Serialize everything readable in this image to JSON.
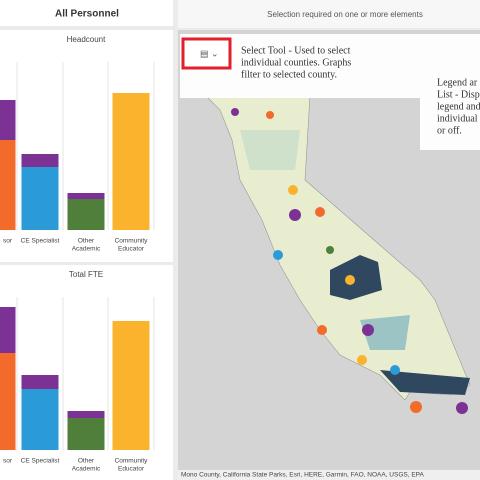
{
  "left": {
    "header": "All Personnel",
    "charts": [
      {
        "title": "Headcount",
        "categories": [
          [
            "sor"
          ],
          [
            "CE Specialist"
          ],
          [
            "Other",
            "Academic"
          ],
          [
            "Community",
            "Educator"
          ]
        ],
        "series": [
          {
            "colors": [
              "#f26b2a",
              "#2b9bd8",
              "#4f7f3a",
              "#fbb22d"
            ],
            "values": [
              90,
              63,
              31,
              137
            ]
          },
          {
            "colors": [
              "#7b3294",
              "#7b3294",
              "#7b3294",
              "#7b3294"
            ],
            "values": [
              40,
              13,
              6,
              null
            ]
          }
        ]
      },
      {
        "title": "Total FTE",
        "categories": [
          [
            "sor"
          ],
          [
            "CE Specialist"
          ],
          [
            "Other",
            "Academic"
          ],
          [
            "Community",
            "Educator"
          ]
        ],
        "series": [
          {
            "colors": [
              "#f26b2a",
              "#2b9bd8",
              "#4f7f3a",
              "#fbb22d"
            ],
            "values": [
              97,
              61,
              32,
              129
            ]
          },
          {
            "colors": [
              "#7b3294",
              "#7b3294",
              "#7b3294",
              "#7b3294"
            ],
            "values": [
              46,
              14,
              7,
              null
            ]
          }
        ]
      }
    ]
  },
  "map": {
    "header": "Selection required on one or more elements",
    "select_tip": [
      "Select Tool - Used to select",
      "individual counties. Graphs",
      "filter to selected county."
    ],
    "legend_tip": [
      "Legend ar",
      "List - Disp",
      "legend and",
      "individual",
      "or off."
    ],
    "attribution": "Mono County, California State Parks, Esri, HERE, Garmin, FAO, NOAA, USGS, EPA"
  }
}
